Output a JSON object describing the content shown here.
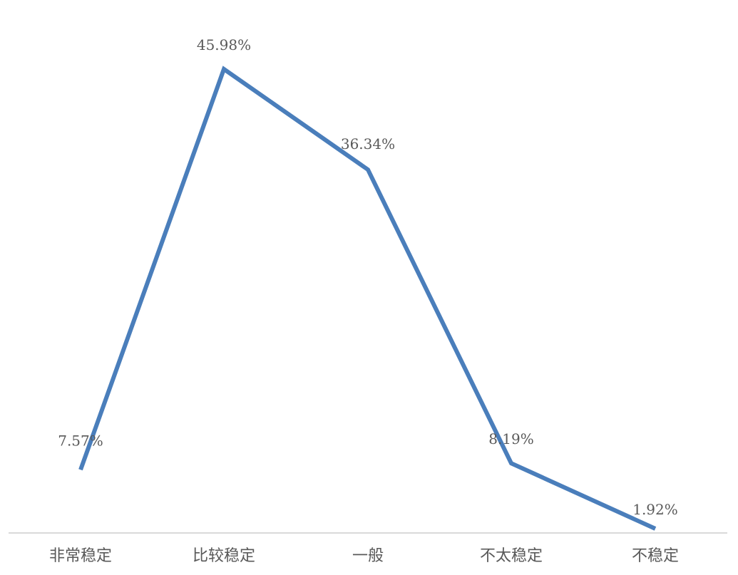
{
  "chart_data": {
    "type": "line",
    "categories": [
      "非常稳定",
      "比较稳定",
      "一般",
      "不太稳定",
      "不稳定"
    ],
    "series": [
      {
        "values": [
          7.57,
          45.98,
          36.34,
          8.19,
          1.92
        ],
        "labels": [
          "7.57%",
          "45.98%",
          "36.34%",
          "8.19%",
          "1.92%"
        ]
      }
    ],
    "ylim": [
      0,
      50
    ],
    "grid": false,
    "legend": "none",
    "colors": {
      "line": "#4a7ebb",
      "axis": "#d9d9d9",
      "text": "#595959"
    }
  }
}
